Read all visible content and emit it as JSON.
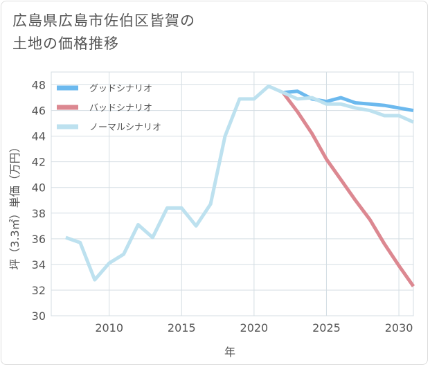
{
  "title": {
    "line1": "広島県広島市佐伯区皆賀の",
    "line2": "土地の価格推移"
  },
  "colors": {
    "good": "#6cb9ee",
    "bad": "#dc8891",
    "normal": "#bde1ef",
    "grid": "#d4dde3",
    "axis_text": "#555555"
  },
  "chart_data": {
    "type": "line",
    "title": "広島県広島市佐伯区皆賀の土地の価格推移",
    "xlabel": "年",
    "ylabel": "坪（3.3㎡）単価（万円）",
    "xlim": [
      2006,
      2031
    ],
    "ylim": [
      30,
      49
    ],
    "xticks": [
      2010,
      2015,
      2020,
      2025,
      2030
    ],
    "yticks": [
      30,
      32,
      34,
      36,
      38,
      40,
      42,
      44,
      46,
      48
    ],
    "legend_position": "top-left",
    "series": [
      {
        "name": "グッドシナリオ",
        "color": "#6cb9ee",
        "x": [
          2022,
          2023,
          2024,
          2025,
          2026,
          2027,
          2028,
          2029,
          2030,
          2031
        ],
        "y": [
          47.4,
          47.5,
          46.9,
          46.7,
          47.0,
          46.6,
          46.5,
          46.4,
          46.2,
          46.0
        ]
      },
      {
        "name": "バッドシナリオ",
        "color": "#dc8891",
        "x": [
          2022,
          2023,
          2024,
          2025,
          2026,
          2027,
          2028,
          2029,
          2030,
          2031
        ],
        "y": [
          47.4,
          45.9,
          44.2,
          42.2,
          40.6,
          39.0,
          37.5,
          35.6,
          33.9,
          32.3
        ]
      },
      {
        "name": "ノーマルシナリオ",
        "color": "#bde1ef",
        "x": [
          2007,
          2008,
          2009,
          2010,
          2011,
          2012,
          2013,
          2014,
          2015,
          2016,
          2017,
          2018,
          2019,
          2020,
          2021,
          2022,
          2023,
          2024,
          2025,
          2026,
          2027,
          2028,
          2029,
          2030,
          2031
        ],
        "y": [
          36.1,
          35.7,
          32.8,
          34.1,
          34.8,
          37.1,
          36.1,
          38.4,
          38.4,
          37.0,
          38.7,
          44.0,
          46.9,
          46.9,
          47.9,
          47.4,
          46.9,
          47.0,
          46.5,
          46.5,
          46.2,
          46.0,
          45.6,
          45.6,
          45.1
        ]
      }
    ]
  }
}
